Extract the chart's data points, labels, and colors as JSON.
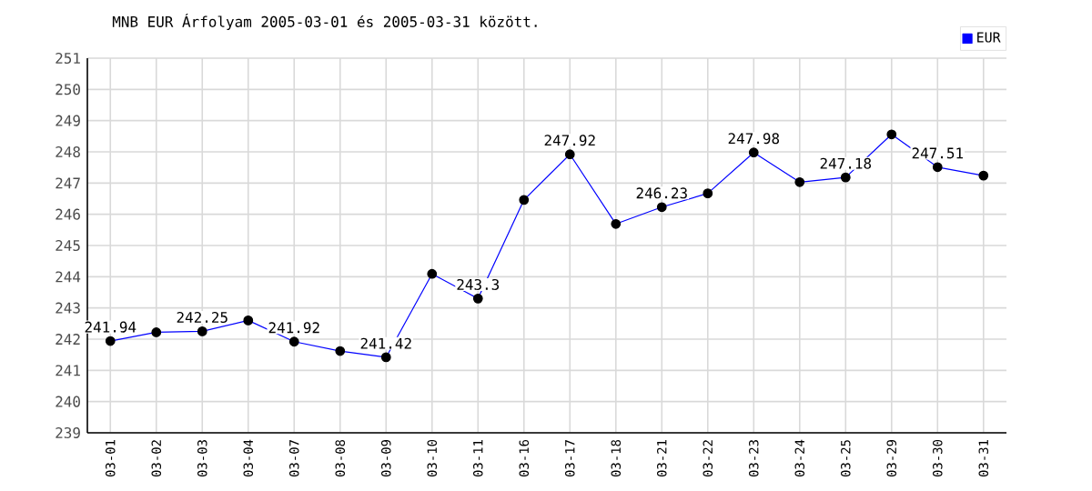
{
  "chart_data": {
    "type": "line",
    "title": "MNB EUR Árfolyam 2005-03-01 és 2005-03-31 között.",
    "categories": [
      "03-01",
      "03-02",
      "03-03",
      "03-04",
      "03-07",
      "03-08",
      "03-09",
      "03-10",
      "03-11",
      "03-16",
      "03-17",
      "03-18",
      "03-21",
      "03-22",
      "03-23",
      "03-24",
      "03-25",
      "03-29",
      "03-30",
      "03-31"
    ],
    "series": [
      {
        "name": "EUR",
        "color": "#0000ff",
        "values": [
          241.94,
          242.22,
          242.25,
          242.6,
          241.92,
          241.62,
          241.42,
          244.09,
          243.3,
          246.46,
          247.92,
          245.69,
          246.23,
          246.67,
          247.98,
          247.03,
          247.18,
          248.56,
          247.51,
          247.24
        ],
        "value_labels": [
          "241.94",
          null,
          "242.25",
          null,
          "241.92",
          null,
          "241.42",
          null,
          "243.3",
          null,
          "247.92",
          null,
          "246.23",
          null,
          "247.98",
          null,
          "247.18",
          null,
          "247.51",
          null
        ]
      }
    ],
    "ylim": [
      239,
      251
    ],
    "yticks": [
      239,
      240,
      241,
      242,
      243,
      244,
      245,
      246,
      247,
      248,
      249,
      250,
      251
    ],
    "grid": true,
    "legend": "top right",
    "marker": "circle",
    "line_style": "solid"
  }
}
